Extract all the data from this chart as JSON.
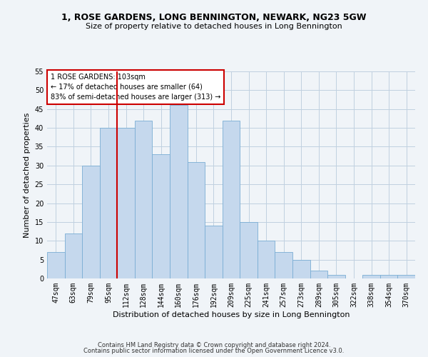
{
  "title1": "1, ROSE GARDENS, LONG BENNINGTON, NEWARK, NG23 5GW",
  "title2": "Size of property relative to detached houses in Long Bennington",
  "xlabel": "Distribution of detached houses by size in Long Bennington",
  "ylabel": "Number of detached properties",
  "bar_color": "#c5d8ed",
  "bar_edge_color": "#7aadd4",
  "categories": [
    "47sqm",
    "63sqm",
    "79sqm",
    "95sqm",
    "112sqm",
    "128sqm",
    "144sqm",
    "160sqm",
    "176sqm",
    "192sqm",
    "209sqm",
    "225sqm",
    "241sqm",
    "257sqm",
    "273sqm",
    "289sqm",
    "305sqm",
    "322sqm",
    "338sqm",
    "354sqm",
    "370sqm"
  ],
  "values": [
    7,
    12,
    30,
    40,
    40,
    42,
    33,
    46,
    31,
    14,
    42,
    15,
    10,
    7,
    5,
    2,
    1,
    0,
    1,
    1,
    1
  ],
  "red_line_x": 3.5,
  "red_line_color": "#cc0000",
  "annotation_text": "1 ROSE GARDENS: 103sqm\n← 17% of detached houses are smaller (64)\n83% of semi-detached houses are larger (313) →",
  "annotation_box_color": "#ffffff",
  "annotation_box_edge": "#cc0000",
  "ylim": [
    0,
    55
  ],
  "yticks": [
    0,
    5,
    10,
    15,
    20,
    25,
    30,
    35,
    40,
    45,
    50,
    55
  ],
  "footer1": "Contains HM Land Registry data © Crown copyright and database right 2024.",
  "footer2": "Contains public sector information licensed under the Open Government Licence v3.0.",
  "bg_color": "#f0f4f8",
  "grid_color": "#c0d0e0",
  "title1_fontsize": 9,
  "title2_fontsize": 8,
  "xlabel_fontsize": 8,
  "ylabel_fontsize": 8,
  "tick_fontsize": 7,
  "footer_fontsize": 6
}
